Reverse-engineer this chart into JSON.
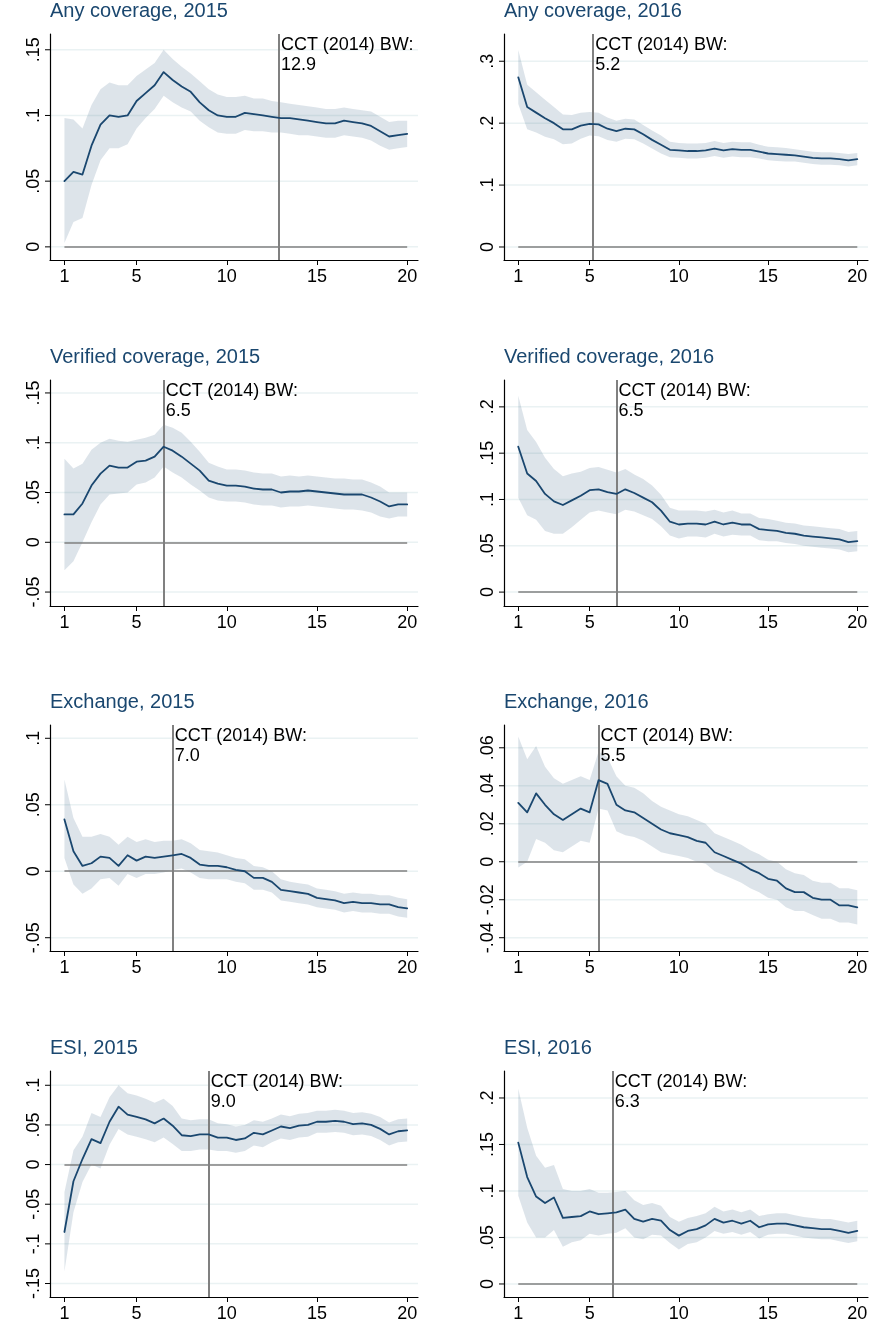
{
  "chart_data": [
    {
      "type": "line",
      "title": "Any coverage, 2015",
      "x": [
        1,
        1.5,
        2,
        2.5,
        3,
        3.5,
        4,
        4.5,
        5,
        5.5,
        6,
        6.5,
        7,
        7.5,
        8,
        8.5,
        9,
        9.5,
        10,
        10.5,
        11,
        11.5,
        12,
        12.5,
        13,
        13.5,
        14,
        14.5,
        15,
        15.5,
        16,
        16.5,
        17,
        17.5,
        18,
        18.5,
        19,
        19.5,
        20
      ],
      "marker": "none",
      "grid": "y",
      "series": [
        {
          "color": "#1a476f",
          "values": [
            0.05,
            0.057,
            0.055,
            0.077,
            0.093,
            0.1,
            0.099,
            0.1,
            0.111,
            0.117,
            0.123,
            0.133,
            0.127,
            0.122,
            0.118,
            0.11,
            0.104,
            0.1,
            0.099,
            0.099,
            0.102,
            0.101,
            0.1,
            0.099,
            0.098,
            0.098,
            0.097,
            0.096,
            0.095,
            0.094,
            0.094,
            0.096,
            0.095,
            0.094,
            0.092,
            0.088,
            0.084,
            0.085,
            0.086
          ],
          "upper": [
            0.098,
            0.097,
            0.09,
            0.108,
            0.12,
            0.125,
            0.123,
            0.123,
            0.13,
            0.135,
            0.14,
            0.15,
            0.143,
            0.137,
            0.132,
            0.126,
            0.12,
            0.116,
            0.114,
            0.114,
            0.115,
            0.113,
            0.113,
            0.111,
            0.11,
            0.109,
            0.108,
            0.107,
            0.106,
            0.105,
            0.105,
            0.106,
            0.105,
            0.104,
            0.103,
            0.099,
            0.095,
            0.096,
            0.096
          ],
          "lower": [
            0.003,
            0.019,
            0.022,
            0.047,
            0.066,
            0.075,
            0.075,
            0.078,
            0.09,
            0.098,
            0.105,
            0.115,
            0.11,
            0.106,
            0.103,
            0.096,
            0.091,
            0.087,
            0.086,
            0.086,
            0.089,
            0.088,
            0.088,
            0.087,
            0.087,
            0.086,
            0.085,
            0.085,
            0.084,
            0.083,
            0.083,
            0.085,
            0.084,
            0.083,
            0.081,
            0.077,
            0.074,
            0.075,
            0.076
          ]
        }
      ],
      "xlim": [
        0.2,
        20.6
      ],
      "xticks": [
        1,
        5,
        10,
        15,
        20
      ],
      "ylim": [
        -0.01,
        0.162
      ],
      "yticks": [
        {
          "value": 0,
          "label": "0"
        },
        {
          "value": 0.05,
          "label": ".05"
        },
        {
          "value": 0.1,
          "label": ".1"
        },
        {
          "value": 0.15,
          "label": ".15"
        }
      ],
      "ref_lines": [
        {
          "axis": "x",
          "value": 12.9,
          "label": "CCT (2014) BW:\n12.9",
          "color": "#808080"
        },
        {
          "axis": "y",
          "value": 0,
          "color": "#808080"
        }
      ]
    },
    {
      "type": "line",
      "title": "Any coverage, 2016",
      "x": [
        1,
        1.5,
        2,
        2.5,
        3,
        3.5,
        4,
        4.5,
        5,
        5.5,
        6,
        6.5,
        7,
        7.5,
        8,
        8.5,
        9,
        9.5,
        10,
        10.5,
        11,
        11.5,
        12,
        12.5,
        13,
        13.5,
        14,
        14.5,
        15,
        15.5,
        16,
        16.5,
        17,
        17.5,
        18,
        18.5,
        19,
        19.5,
        20
      ],
      "marker": "none",
      "grid": "y",
      "series": [
        {
          "color": "#1a476f",
          "values": [
            0.274,
            0.226,
            0.217,
            0.208,
            0.2,
            0.19,
            0.19,
            0.196,
            0.199,
            0.198,
            0.191,
            0.187,
            0.191,
            0.19,
            0.182,
            0.173,
            0.165,
            0.157,
            0.156,
            0.155,
            0.155,
            0.156,
            0.159,
            0.156,
            0.158,
            0.157,
            0.157,
            0.154,
            0.151,
            0.15,
            0.149,
            0.148,
            0.146,
            0.144,
            0.143,
            0.143,
            0.142,
            0.14,
            0.142
          ],
          "upper": [
            0.318,
            0.262,
            0.25,
            0.238,
            0.226,
            0.214,
            0.213,
            0.217,
            0.218,
            0.217,
            0.209,
            0.204,
            0.207,
            0.206,
            0.197,
            0.188,
            0.18,
            0.17,
            0.168,
            0.167,
            0.167,
            0.168,
            0.171,
            0.168,
            0.17,
            0.169,
            0.169,
            0.165,
            0.162,
            0.161,
            0.16,
            0.158,
            0.156,
            0.154,
            0.153,
            0.153,
            0.152,
            0.15,
            0.152
          ],
          "lower": [
            0.231,
            0.19,
            0.185,
            0.178,
            0.174,
            0.166,
            0.167,
            0.175,
            0.18,
            0.179,
            0.173,
            0.17,
            0.175,
            0.174,
            0.167,
            0.159,
            0.151,
            0.145,
            0.144,
            0.143,
            0.143,
            0.144,
            0.147,
            0.144,
            0.146,
            0.145,
            0.145,
            0.143,
            0.14,
            0.139,
            0.138,
            0.138,
            0.136,
            0.134,
            0.133,
            0.133,
            0.132,
            0.13,
            0.132
          ]
        }
      ],
      "xlim": [
        0.2,
        20.6
      ],
      "xticks": [
        1,
        5,
        10,
        15,
        20
      ],
      "ylim": [
        -0.021,
        0.344
      ],
      "yticks": [
        {
          "value": 0,
          "label": "0"
        },
        {
          "value": 0.1,
          "label": ".1"
        },
        {
          "value": 0.2,
          "label": ".2"
        },
        {
          "value": 0.3,
          "label": ".3"
        }
      ],
      "ref_lines": [
        {
          "axis": "x",
          "value": 5.2,
          "label": "CCT (2014) BW:\n5.2",
          "color": "#808080"
        },
        {
          "axis": "y",
          "value": 0,
          "color": "#808080"
        }
      ]
    },
    {
      "type": "line",
      "title": "Verified coverage, 2015",
      "x": [
        1,
        1.5,
        2,
        2.5,
        3,
        3.5,
        4,
        4.5,
        5,
        5.5,
        6,
        6.5,
        7,
        7.5,
        8,
        8.5,
        9,
        9.5,
        10,
        10.5,
        11,
        11.5,
        12,
        12.5,
        13,
        13.5,
        14,
        14.5,
        15,
        15.5,
        16,
        16.5,
        17,
        17.5,
        18,
        18.5,
        19,
        19.5,
        20
      ],
      "marker": "none",
      "grid": "y",
      "series": [
        {
          "color": "#1a476f",
          "values": [
            0.028,
            0.028,
            0.039,
            0.057,
            0.069,
            0.077,
            0.075,
            0.075,
            0.081,
            0.082,
            0.086,
            0.096,
            0.092,
            0.086,
            0.079,
            0.072,
            0.062,
            0.059,
            0.057,
            0.057,
            0.056,
            0.054,
            0.053,
            0.053,
            0.05,
            0.051,
            0.051,
            0.052,
            0.051,
            0.05,
            0.049,
            0.048,
            0.048,
            0.048,
            0.045,
            0.041,
            0.036,
            0.038,
            0.038
          ],
          "upper": [
            0.084,
            0.074,
            0.079,
            0.093,
            0.1,
            0.104,
            0.102,
            0.101,
            0.103,
            0.105,
            0.108,
            0.118,
            0.115,
            0.11,
            0.101,
            0.091,
            0.08,
            0.076,
            0.073,
            0.073,
            0.072,
            0.07,
            0.069,
            0.069,
            0.066,
            0.067,
            0.066,
            0.067,
            0.066,
            0.065,
            0.064,
            0.064,
            0.063,
            0.063,
            0.06,
            0.056,
            0.05,
            0.05,
            0.05
          ],
          "lower": [
            -0.028,
            -0.019,
            0,
            0.02,
            0.038,
            0.048,
            0.049,
            0.05,
            0.058,
            0.06,
            0.065,
            0.076,
            0.07,
            0.065,
            0.058,
            0.052,
            0.045,
            0.042,
            0.041,
            0.041,
            0.04,
            0.038,
            0.037,
            0.037,
            0.035,
            0.036,
            0.036,
            0.037,
            0.036,
            0.035,
            0.034,
            0.033,
            0.033,
            0.032,
            0.03,
            0.026,
            0.024,
            0.026,
            0.026
          ]
        }
      ],
      "xlim": [
        0.2,
        20.6
      ],
      "xticks": [
        1,
        5,
        10,
        15,
        20
      ],
      "ylim": [
        -0.064,
        0.163
      ],
      "yticks": [
        {
          "value": -0.05,
          "label": "-.05"
        },
        {
          "value": 0,
          "label": "0"
        },
        {
          "value": 0.05,
          "label": ".05"
        },
        {
          "value": 0.1,
          "label": ".1"
        },
        {
          "value": 0.15,
          "label": ".15"
        }
      ],
      "ref_lines": [
        {
          "axis": "x",
          "value": 6.5,
          "label": "CCT (2014) BW:\n6.5",
          "color": "#808080"
        },
        {
          "axis": "y",
          "value": 0,
          "color": "#808080"
        }
      ]
    },
    {
      "type": "line",
      "title": "Verified coverage, 2016",
      "x": [
        1,
        1.5,
        2,
        2.5,
        3,
        3.5,
        4,
        4.5,
        5,
        5.5,
        6,
        6.5,
        7,
        7.5,
        8,
        8.5,
        9,
        9.5,
        10,
        10.5,
        11,
        11.5,
        12,
        12.5,
        13,
        13.5,
        14,
        14.5,
        15,
        15.5,
        16,
        16.5,
        17,
        17.5,
        18,
        18.5,
        19,
        19.5,
        20
      ],
      "marker": "none",
      "grid": "y",
      "series": [
        {
          "color": "#1a476f",
          "values": [
            0.157,
            0.128,
            0.12,
            0.106,
            0.098,
            0.094,
            0.099,
            0.104,
            0.11,
            0.111,
            0.108,
            0.106,
            0.111,
            0.107,
            0.102,
            0.097,
            0.088,
            0.076,
            0.073,
            0.074,
            0.074,
            0.073,
            0.076,
            0.073,
            0.075,
            0.073,
            0.073,
            0.068,
            0.067,
            0.066,
            0.064,
            0.063,
            0.061,
            0.06,
            0.059,
            0.058,
            0.057,
            0.054,
            0.055
          ],
          "upper": [
            0.212,
            0.175,
            0.162,
            0.145,
            0.133,
            0.125,
            0.128,
            0.13,
            0.134,
            0.135,
            0.132,
            0.129,
            0.133,
            0.127,
            0.122,
            0.115,
            0.105,
            0.091,
            0.088,
            0.088,
            0.088,
            0.087,
            0.089,
            0.086,
            0.088,
            0.085,
            0.085,
            0.08,
            0.079,
            0.077,
            0.075,
            0.074,
            0.072,
            0.071,
            0.07,
            0.069,
            0.068,
            0.065,
            0.066
          ],
          "lower": [
            0.102,
            0.083,
            0.078,
            0.066,
            0.063,
            0.063,
            0.07,
            0.078,
            0.086,
            0.088,
            0.086,
            0.084,
            0.089,
            0.087,
            0.083,
            0.079,
            0.071,
            0.061,
            0.058,
            0.06,
            0.06,
            0.059,
            0.063,
            0.06,
            0.062,
            0.061,
            0.061,
            0.056,
            0.055,
            0.055,
            0.053,
            0.052,
            0.05,
            0.049,
            0.048,
            0.047,
            0.046,
            0.043,
            0.044
          ]
        }
      ],
      "xlim": [
        0.2,
        20.6
      ],
      "xticks": [
        1,
        5,
        10,
        15,
        20
      ],
      "ylim": [
        -0.015,
        0.229
      ],
      "yticks": [
        {
          "value": 0,
          "label": "0"
        },
        {
          "value": 0.05,
          "label": ".05"
        },
        {
          "value": 0.1,
          "label": ".1"
        },
        {
          "value": 0.15,
          "label": ".15"
        },
        {
          "value": 0.2,
          "label": ".2"
        }
      ],
      "ref_lines": [
        {
          "axis": "x",
          "value": 6.5,
          "label": "CCT (2014) BW:\n6.5",
          "color": "#808080"
        },
        {
          "axis": "y",
          "value": 0,
          "color": "#808080"
        }
      ]
    },
    {
      "type": "line",
      "title": "Exchange, 2015",
      "x": [
        1,
        1.5,
        2,
        2.5,
        3,
        3.5,
        4,
        4.5,
        5,
        5.5,
        6,
        6.5,
        7,
        7.5,
        8,
        8.5,
        9,
        9.5,
        10,
        10.5,
        11,
        11.5,
        12,
        12.5,
        13,
        13.5,
        14,
        14.5,
        15,
        15.5,
        16,
        16.5,
        17,
        17.5,
        18,
        18.5,
        19,
        19.5,
        20
      ],
      "marker": "none",
      "grid": "y",
      "series": [
        {
          "color": "#1a476f",
          "values": [
            0.039,
            0.015,
            0.004,
            0.006,
            0.011,
            0.01,
            0.004,
            0.012,
            0.008,
            0.011,
            0.01,
            0.011,
            0.012,
            0.013,
            0.01,
            0.005,
            0.004,
            0.004,
            0.003,
            0.001,
            0,
            -0.005,
            -0.005,
            -0.008,
            -0.014,
            -0.015,
            -0.016,
            -0.017,
            -0.02,
            -0.021,
            -0.022,
            -0.024,
            -0.023,
            -0.024,
            -0.024,
            -0.025,
            -0.025,
            -0.027,
            -0.028
          ],
          "upper": [
            0.069,
            0.04,
            0.026,
            0.026,
            0.028,
            0.026,
            0.02,
            0.026,
            0.022,
            0.024,
            0.022,
            0.023,
            0.023,
            0.024,
            0.021,
            0.016,
            0.015,
            0.014,
            0.012,
            0.01,
            0.009,
            0.004,
            0.003,
            0,
            -0.006,
            -0.008,
            -0.009,
            -0.01,
            -0.013,
            -0.014,
            -0.015,
            -0.017,
            -0.016,
            -0.017,
            -0.017,
            -0.018,
            -0.018,
            -0.02,
            -0.021
          ],
          "lower": [
            0.01,
            -0.01,
            -0.017,
            -0.013,
            -0.006,
            -0.005,
            -0.011,
            -0.002,
            -0.005,
            -0.002,
            -0.002,
            -0.001,
            0.001,
            0.002,
            -0.001,
            -0.005,
            -0.006,
            -0.006,
            -0.006,
            -0.008,
            -0.009,
            -0.014,
            -0.014,
            -0.016,
            -0.022,
            -0.023,
            -0.024,
            -0.025,
            -0.027,
            -0.028,
            -0.029,
            -0.031,
            -0.03,
            -0.031,
            -0.031,
            -0.032,
            -0.032,
            -0.034,
            -0.035
          ]
        }
      ],
      "xlim": [
        0.2,
        20.6
      ],
      "xticks": [
        1,
        5,
        10,
        15,
        20
      ],
      "ylim": [
        -0.06,
        0.11
      ],
      "yticks": [
        {
          "value": -0.05,
          "label": "-.05"
        },
        {
          "value": 0,
          "label": "0"
        },
        {
          "value": 0.05,
          "label": ".05"
        },
        {
          "value": 0.1,
          "label": ".1"
        }
      ],
      "ref_lines": [
        {
          "axis": "x",
          "value": 7.0,
          "label": "CCT (2014) BW:\n7.0",
          "color": "#808080"
        },
        {
          "axis": "y",
          "value": 0,
          "color": "#808080"
        }
      ]
    },
    {
      "type": "line",
      "title": "Exchange, 2016",
      "x": [
        1,
        1.5,
        2,
        2.5,
        3,
        3.5,
        4,
        4.5,
        5,
        5.5,
        6,
        6.5,
        7,
        7.5,
        8,
        8.5,
        9,
        9.5,
        10,
        10.5,
        11,
        11.5,
        12,
        12.5,
        13,
        13.5,
        14,
        14.5,
        15,
        15.5,
        16,
        16.5,
        17,
        17.5,
        18,
        18.5,
        19,
        19.5,
        20
      ],
      "marker": "none",
      "grid": "y",
      "series": [
        {
          "color": "#1a476f",
          "values": [
            0.031,
            0.026,
            0.036,
            0.03,
            0.025,
            0.022,
            0.025,
            0.028,
            0.026,
            0.043,
            0.041,
            0.03,
            0.027,
            0.026,
            0.023,
            0.02,
            0.017,
            0.015,
            0.014,
            0.013,
            0.011,
            0.01,
            0.005,
            0.003,
            0.001,
            -0.001,
            -0.004,
            -0.006,
            -0.009,
            -0.01,
            -0.014,
            -0.016,
            -0.016,
            -0.019,
            -0.02,
            -0.02,
            -0.023,
            -0.023,
            -0.024
          ],
          "upper": [
            0.066,
            0.054,
            0.061,
            0.05,
            0.044,
            0.041,
            0.043,
            0.045,
            0.043,
            0.058,
            0.055,
            0.045,
            0.04,
            0.039,
            0.036,
            0.032,
            0.029,
            0.027,
            0.025,
            0.024,
            0.022,
            0.02,
            0.015,
            0.013,
            0.011,
            0.009,
            0.006,
            0.004,
            0.001,
            0,
            -0.004,
            -0.006,
            -0.007,
            -0.01,
            -0.011,
            -0.011,
            -0.014,
            -0.014,
            -0.015
          ],
          "lower": [
            -0.003,
            0,
            0.012,
            0.01,
            0.006,
            0.005,
            0.008,
            0.011,
            0.01,
            0.028,
            0.027,
            0.016,
            0.014,
            0.013,
            0.011,
            0.008,
            0.005,
            0.004,
            0.003,
            0.002,
            0,
            -0.001,
            -0.005,
            -0.007,
            -0.009,
            -0.011,
            -0.014,
            -0.016,
            -0.019,
            -0.02,
            -0.024,
            -0.026,
            -0.026,
            -0.028,
            -0.03,
            -0.03,
            -0.032,
            -0.032,
            -0.033
          ]
        }
      ],
      "xlim": [
        0.2,
        20.6
      ],
      "xticks": [
        1,
        5,
        10,
        15,
        20
      ],
      "ylim": [
        -0.047,
        0.072
      ],
      "yticks": [
        {
          "value": -0.04,
          "label": "-.04"
        },
        {
          "value": -0.02,
          "label": "-.02"
        },
        {
          "value": 0,
          "label": "0"
        },
        {
          "value": 0.02,
          "label": ".02"
        },
        {
          "value": 0.04,
          "label": ".04"
        },
        {
          "value": 0.06,
          "label": ".06"
        }
      ],
      "ref_lines": [
        {
          "axis": "x",
          "value": 5.5,
          "label": "CCT (2014) BW:\n5.5",
          "color": "#808080"
        },
        {
          "axis": "y",
          "value": 0,
          "color": "#808080"
        }
      ]
    },
    {
      "type": "line",
      "title": "ESI, 2015",
      "x": [
        1,
        1.5,
        2,
        2.5,
        3,
        3.5,
        4,
        4.5,
        5,
        5.5,
        6,
        6.5,
        7,
        7.5,
        8,
        8.5,
        9,
        9.5,
        10,
        10.5,
        11,
        11.5,
        12,
        12.5,
        13,
        13.5,
        14,
        14.5,
        15,
        15.5,
        16,
        16.5,
        17,
        17.5,
        18,
        18.5,
        19,
        19.5,
        20
      ],
      "marker": "none",
      "grid": "y",
      "series": [
        {
          "color": "#1a476f",
          "values": [
            -0.085,
            -0.021,
            0.007,
            0.032,
            0.027,
            0.054,
            0.073,
            0.063,
            0.06,
            0.057,
            0.052,
            0.058,
            0.049,
            0.037,
            0.036,
            0.038,
            0.038,
            0.034,
            0.034,
            0.031,
            0.033,
            0.04,
            0.038,
            0.043,
            0.048,
            0.046,
            0.049,
            0.05,
            0.054,
            0.054,
            0.055,
            0.054,
            0.051,
            0.052,
            0.05,
            0.045,
            0.038,
            0.042,
            0.043
          ],
          "upper": [
            -0.035,
            0.018,
            0.035,
            0.065,
            0.06,
            0.085,
            0.1,
            0.09,
            0.087,
            0.083,
            0.078,
            0.083,
            0.074,
            0.058,
            0.056,
            0.057,
            0.057,
            0.052,
            0.051,
            0.048,
            0.05,
            0.056,
            0.054,
            0.058,
            0.063,
            0.061,
            0.064,
            0.065,
            0.068,
            0.068,
            0.069,
            0.068,
            0.065,
            0.066,
            0.064,
            0.06,
            0.053,
            0.057,
            0.058
          ],
          "lower": [
            -0.135,
            -0.06,
            -0.022,
            0,
            -0.005,
            0.025,
            0.045,
            0.038,
            0.035,
            0.032,
            0.028,
            0.034,
            0.026,
            0.017,
            0.017,
            0.019,
            0.019,
            0.017,
            0.017,
            0.015,
            0.017,
            0.024,
            0.022,
            0.028,
            0.033,
            0.031,
            0.034,
            0.035,
            0.04,
            0.04,
            0.041,
            0.04,
            0.037,
            0.038,
            0.036,
            0.031,
            0.024,
            0.028,
            0.029
          ]
        }
      ],
      "xlim": [
        0.2,
        20.6
      ],
      "xticks": [
        1,
        5,
        10,
        15,
        20
      ],
      "ylim": [
        -0.167,
        0.118
      ],
      "yticks": [
        {
          "value": -0.15,
          "label": "-.15"
        },
        {
          "value": -0.1,
          "label": "-.1"
        },
        {
          "value": -0.05,
          "label": "-.05"
        },
        {
          "value": 0,
          "label": "0"
        },
        {
          "value": 0.05,
          "label": ".05"
        },
        {
          "value": 0.1,
          "label": ".1"
        }
      ],
      "ref_lines": [
        {
          "axis": "x",
          "value": 9.0,
          "label": "CCT (2014) BW:\n9.0",
          "color": "#808080"
        },
        {
          "axis": "y",
          "value": 0,
          "color": "#808080"
        }
      ]
    },
    {
      "type": "line",
      "title": "ESI, 2016",
      "x": [
        1,
        1.5,
        2,
        2.5,
        3,
        3.5,
        4,
        4.5,
        5,
        5.5,
        6,
        6.5,
        7,
        7.5,
        8,
        8.5,
        9,
        9.5,
        10,
        10.5,
        11,
        11.5,
        12,
        12.5,
        13,
        13.5,
        14,
        14.5,
        15,
        15.5,
        16,
        16.5,
        17,
        17.5,
        18,
        18.5,
        19,
        19.5,
        20
      ],
      "marker": "none",
      "grid": "y",
      "series": [
        {
          "color": "#1a476f",
          "values": [
            0.152,
            0.115,
            0.094,
            0.087,
            0.093,
            0.071,
            0.072,
            0.073,
            0.078,
            0.075,
            0.076,
            0.077,
            0.08,
            0.07,
            0.067,
            0.07,
            0.068,
            0.058,
            0.052,
            0.057,
            0.059,
            0.063,
            0.07,
            0.066,
            0.068,
            0.065,
            0.068,
            0.061,
            0.064,
            0.065,
            0.065,
            0.063,
            0.061,
            0.06,
            0.059,
            0.059,
            0.057,
            0.055,
            0.057
          ],
          "upper": [
            0.21,
            0.168,
            0.138,
            0.125,
            0.128,
            0.102,
            0.1,
            0.1,
            0.102,
            0.098,
            0.098,
            0.099,
            0.1,
            0.09,
            0.085,
            0.087,
            0.084,
            0.072,
            0.067,
            0.071,
            0.073,
            0.076,
            0.083,
            0.078,
            0.08,
            0.077,
            0.08,
            0.073,
            0.075,
            0.076,
            0.076,
            0.074,
            0.072,
            0.071,
            0.07,
            0.07,
            0.068,
            0.066,
            0.068
          ],
          "lower": [
            0.095,
            0.066,
            0.05,
            0.05,
            0.058,
            0.04,
            0.045,
            0.047,
            0.054,
            0.052,
            0.054,
            0.055,
            0.06,
            0.05,
            0.048,
            0.053,
            0.052,
            0.044,
            0.037,
            0.043,
            0.045,
            0.05,
            0.057,
            0.054,
            0.056,
            0.053,
            0.056,
            0.049,
            0.053,
            0.054,
            0.054,
            0.052,
            0.05,
            0.049,
            0.048,
            0.048,
            0.046,
            0.044,
            0.046
          ]
        }
      ],
      "xlim": [
        0.2,
        20.6
      ],
      "xticks": [
        1,
        5,
        10,
        15,
        20
      ],
      "ylim": [
        -0.014,
        0.229
      ],
      "yticks": [
        {
          "value": 0,
          "label": "0"
        },
        {
          "value": 0.05,
          "label": ".05"
        },
        {
          "value": 0.1,
          "label": ".1"
        },
        {
          "value": 0.15,
          "label": ".15"
        },
        {
          "value": 0.2,
          "label": ".2"
        }
      ],
      "ref_lines": [
        {
          "axis": "x",
          "value": 6.3,
          "label": "CCT (2014) BW:\n6.3",
          "color": "#808080"
        },
        {
          "axis": "y",
          "value": 0,
          "color": "#808080"
        }
      ]
    }
  ]
}
